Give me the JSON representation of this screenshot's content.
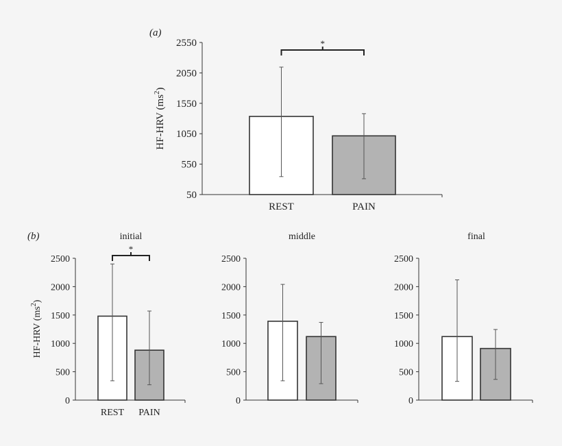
{
  "chart_data": [
    {
      "type": "bar",
      "panel_label": "(a)",
      "title": "",
      "ylabel": "HF-HRV (ms²)",
      "ylabel_base": "HF-HRV (ms",
      "ylabel_sup": "2",
      "ylabel_close": ")",
      "ylim": [
        50,
        2550
      ],
      "yticks": [
        50,
        550,
        1050,
        1550,
        2050,
        2550
      ],
      "categories": [
        "REST",
        "PAIN"
      ],
      "values": [
        1335,
        1015
      ],
      "error_upper": [
        2145,
        1380
      ],
      "error_lower": [
        345,
        310
      ],
      "bar_colors": [
        "#ffffff",
        "#b3b3b3"
      ],
      "significance": {
        "between": [
          "REST",
          "PAIN"
        ],
        "marker": "*"
      },
      "grid": false
    },
    {
      "type": "bar",
      "panel_label": "(b)",
      "title": "initial",
      "ylabel": "HF-HRV (ms²)",
      "ylabel_base": "HF-HRV (ms",
      "ylabel_sup": "2",
      "ylabel_close": ")",
      "ylim": [
        0,
        2500
      ],
      "yticks": [
        0,
        500,
        1000,
        1500,
        2000,
        2500
      ],
      "categories": [
        "REST",
        "PAIN"
      ],
      "values": [
        1480,
        880
      ],
      "error_upper": [
        2400,
        1570
      ],
      "error_lower": [
        340,
        270
      ],
      "bar_colors": [
        "#ffffff",
        "#b3b3b3"
      ],
      "significance": {
        "between": [
          "REST",
          "PAIN"
        ],
        "marker": "*"
      },
      "grid": false
    },
    {
      "type": "bar",
      "title": "middle",
      "ylim": [
        0,
        2500
      ],
      "yticks": [
        0,
        500,
        1000,
        1500,
        2000,
        2500
      ],
      "values": [
        1390,
        1120
      ],
      "error_upper": [
        2040,
        1370
      ],
      "error_lower": [
        340,
        290
      ],
      "bar_colors": [
        "#ffffff",
        "#b3b3b3"
      ],
      "grid": false
    },
    {
      "type": "bar",
      "title": "final",
      "ylim": [
        0,
        2500
      ],
      "yticks": [
        0,
        500,
        1000,
        1500,
        2000,
        2500
      ],
      "values": [
        1120,
        910
      ],
      "error_upper": [
        2120,
        1245
      ],
      "error_lower": [
        330,
        365
      ],
      "bar_colors": [
        "#ffffff",
        "#b3b3b3"
      ],
      "grid": false
    }
  ]
}
